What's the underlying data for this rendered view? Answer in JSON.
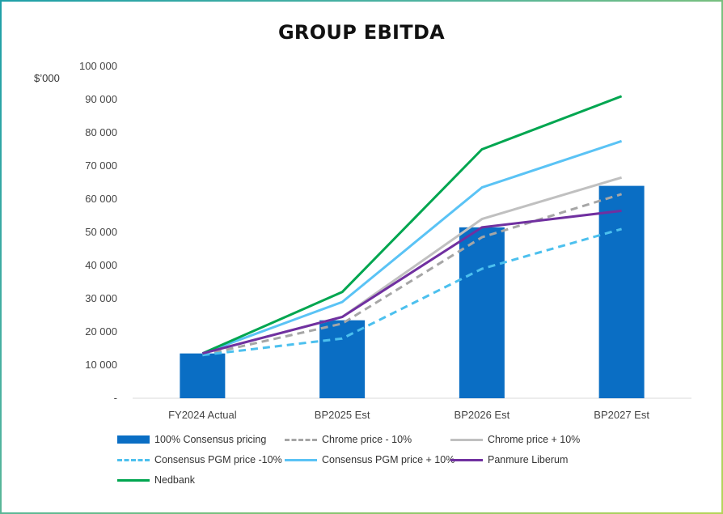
{
  "chart_data": {
    "type": "bar",
    "title": "GROUP EBITDA",
    "ylabel": "$’000",
    "xlabel": "",
    "categories": [
      "FY2024 Actual",
      "BP2025 Est",
      "BP2026 Est",
      "BP2027 Est"
    ],
    "ylim": [
      0,
      100000
    ],
    "y_ticks": [
      {
        "value": 0,
        "label": "-"
      },
      {
        "value": 10000,
        "label": "10 000"
      },
      {
        "value": 20000,
        "label": "20 000"
      },
      {
        "value": 30000,
        "label": "30 000"
      },
      {
        "value": 40000,
        "label": "40 000"
      },
      {
        "value": 50000,
        "label": "50 000"
      },
      {
        "value": 60000,
        "label": "60 000"
      },
      {
        "value": 70000,
        "label": "70 000"
      },
      {
        "value": 80000,
        "label": "80 000"
      },
      {
        "value": 90000,
        "label": "90 000"
      },
      {
        "value": 100000,
        "label": "100 000"
      }
    ],
    "grid": false,
    "legend_position": "bottom",
    "series": [
      {
        "name": "100% Consensus pricing",
        "kind": "bar",
        "color": "#0a6ec4",
        "values": [
          13500,
          23500,
          51500,
          64000
        ]
      },
      {
        "name": "Chrome price - 10%",
        "kind": "line",
        "dash": true,
        "color": "#a6a6a6",
        "values": [
          13000,
          22500,
          48500,
          61500
        ]
      },
      {
        "name": "Chrome price + 10%",
        "kind": "line",
        "dash": false,
        "color": "#c0c0c0",
        "values": [
          13500,
          24500,
          54000,
          66500
        ]
      },
      {
        "name": "Consensus PGM price -10%",
        "kind": "line",
        "dash": true,
        "color": "#4cc0ee",
        "values": [
          13000,
          18000,
          39000,
          51000
        ]
      },
      {
        "name": "Consensus PGM price + 10%",
        "kind": "line",
        "dash": false,
        "color": "#5ac3f5",
        "values": [
          13500,
          29000,
          63500,
          77500
        ]
      },
      {
        "name": "Panmure Liberum",
        "kind": "line",
        "dash": false,
        "color": "#7030a0",
        "values": [
          13500,
          24500,
          51500,
          56500
        ]
      },
      {
        "name": "Nedbank",
        "kind": "line",
        "dash": false,
        "color": "#00a650",
        "values": [
          13500,
          32000,
          75000,
          91000
        ]
      }
    ]
  }
}
